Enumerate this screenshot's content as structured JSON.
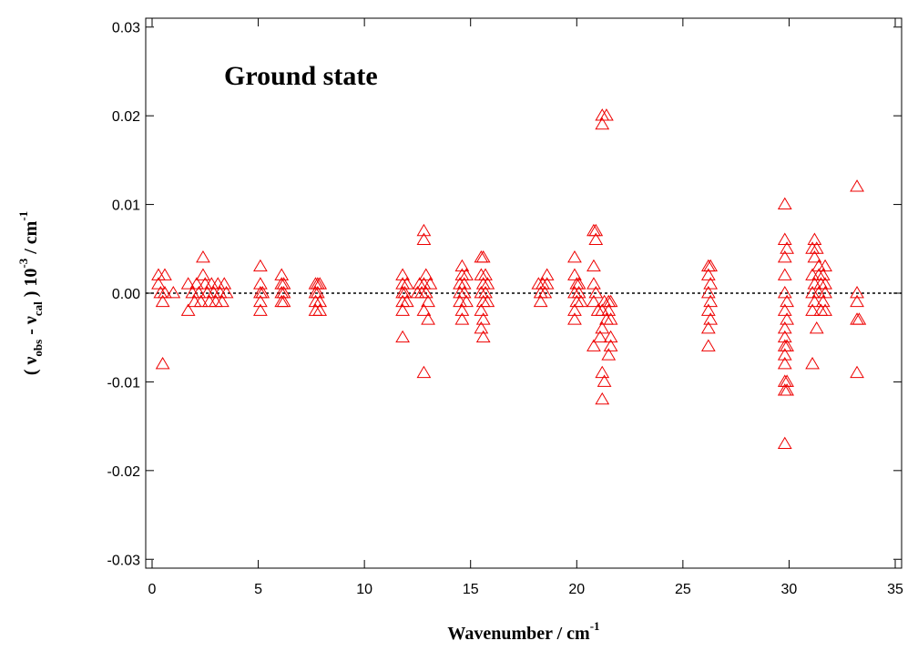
{
  "chart_data": {
    "type": "scatter",
    "title": "",
    "annotation": "Ground state",
    "xlabel": {
      "main": "Wavenumber / cm",
      "sup": "-1"
    },
    "ylabel": {
      "open": "( ν",
      "sub1": "obs",
      "mid": " - ν",
      "sub2": "cal",
      "close": " ) 10",
      "sup1": "-3",
      "unit": " / cm",
      "sup2": "-1"
    },
    "xlim": [
      -0.3,
      35.3
    ],
    "ylim": [
      -0.031,
      0.031
    ],
    "xticks": [
      0,
      5,
      10,
      15,
      20,
      25,
      30,
      35
    ],
    "xtick_labels": [
      "0",
      "5",
      "10",
      "15",
      "20",
      "25",
      "30",
      "35"
    ],
    "yticks": [
      -0.03,
      -0.02,
      -0.01,
      0.0,
      0.01,
      0.02,
      0.03
    ],
    "ytick_labels": [
      "-0.03",
      "-0.02",
      "-0.01",
      "0.00",
      "0.01",
      "0.02",
      "0.03"
    ],
    "reference_line": {
      "y": 0,
      "style": "dotted"
    },
    "grid": false,
    "marker": "open-triangle",
    "marker_color": "#ee0000",
    "points": [
      {
        "x": 0.3,
        "y": 0.002
      },
      {
        "x": 0.3,
        "y": 0.001
      },
      {
        "x": 0.4,
        "y": 0.0
      },
      {
        "x": 0.5,
        "y": -0.001
      },
      {
        "x": 0.5,
        "y": -0.008
      },
      {
        "x": 0.6,
        "y": 0.002
      },
      {
        "x": 0.6,
        "y": 0.0
      },
      {
        "x": 1.0,
        "y": 0.0
      },
      {
        "x": 1.7,
        "y": 0.001
      },
      {
        "x": 1.7,
        "y": -0.002
      },
      {
        "x": 1.9,
        "y": 0.0
      },
      {
        "x": 2.0,
        "y": -0.001
      },
      {
        "x": 2.1,
        "y": 0.001
      },
      {
        "x": 2.2,
        "y": 0.0
      },
      {
        "x": 2.3,
        "y": -0.001
      },
      {
        "x": 2.4,
        "y": 0.002
      },
      {
        "x": 2.4,
        "y": 0.004
      },
      {
        "x": 2.5,
        "y": 0.001
      },
      {
        "x": 2.6,
        "y": 0.0
      },
      {
        "x": 2.7,
        "y": -0.001
      },
      {
        "x": 2.8,
        "y": 0.001
      },
      {
        "x": 2.9,
        "y": 0.0
      },
      {
        "x": 3.0,
        "y": -0.001
      },
      {
        "x": 3.1,
        "y": 0.001
      },
      {
        "x": 3.2,
        "y": 0.0
      },
      {
        "x": 3.3,
        "y": -0.001
      },
      {
        "x": 3.4,
        "y": 0.001
      },
      {
        "x": 3.5,
        "y": 0.0
      },
      {
        "x": 5.1,
        "y": 0.003
      },
      {
        "x": 5.1,
        "y": 0.001
      },
      {
        "x": 5.1,
        "y": 0.0
      },
      {
        "x": 5.1,
        "y": -0.001
      },
      {
        "x": 5.1,
        "y": -0.002
      },
      {
        "x": 5.2,
        "y": 0.0
      },
      {
        "x": 6.1,
        "y": 0.002
      },
      {
        "x": 6.1,
        "y": 0.001
      },
      {
        "x": 6.1,
        "y": 0.0
      },
      {
        "x": 6.1,
        "y": -0.001
      },
      {
        "x": 6.2,
        "y": 0.001
      },
      {
        "x": 6.2,
        "y": 0.0
      },
      {
        "x": 6.2,
        "y": -0.001
      },
      {
        "x": 7.7,
        "y": 0.001
      },
      {
        "x": 7.7,
        "y": 0.0
      },
      {
        "x": 7.7,
        "y": -0.001
      },
      {
        "x": 7.7,
        "y": -0.002
      },
      {
        "x": 7.8,
        "y": 0.001
      },
      {
        "x": 7.8,
        "y": 0.0
      },
      {
        "x": 7.9,
        "y": -0.001
      },
      {
        "x": 7.9,
        "y": -0.002
      },
      {
        "x": 7.9,
        "y": 0.001
      },
      {
        "x": 11.8,
        "y": 0.002
      },
      {
        "x": 11.8,
        "y": 0.001
      },
      {
        "x": 11.8,
        "y": 0.0
      },
      {
        "x": 11.8,
        "y": -0.001
      },
      {
        "x": 11.8,
        "y": -0.002
      },
      {
        "x": 11.8,
        "y": -0.005
      },
      {
        "x": 11.9,
        "y": 0.0
      },
      {
        "x": 12.0,
        "y": 0.001
      },
      {
        "x": 12.0,
        "y": -0.001
      },
      {
        "x": 12.5,
        "y": 0.0
      },
      {
        "x": 12.6,
        "y": 0.001
      },
      {
        "x": 12.7,
        "y": 0.0
      },
      {
        "x": 12.8,
        "y": 0.007
      },
      {
        "x": 12.8,
        "y": 0.006
      },
      {
        "x": 12.8,
        "y": 0.001
      },
      {
        "x": 12.8,
        "y": -0.002
      },
      {
        "x": 12.8,
        "y": -0.009
      },
      {
        "x": 12.9,
        "y": 0.002
      },
      {
        "x": 12.9,
        "y": 0.0
      },
      {
        "x": 13.0,
        "y": -0.001
      },
      {
        "x": 13.0,
        "y": -0.003
      },
      {
        "x": 13.1,
        "y": 0.001
      },
      {
        "x": 14.5,
        "y": 0.001
      },
      {
        "x": 14.5,
        "y": 0.0
      },
      {
        "x": 14.5,
        "y": -0.001
      },
      {
        "x": 14.6,
        "y": 0.003
      },
      {
        "x": 14.6,
        "y": 0.002
      },
      {
        "x": 14.6,
        "y": -0.002
      },
      {
        "x": 14.6,
        "y": -0.003
      },
      {
        "x": 14.7,
        "y": 0.001
      },
      {
        "x": 14.7,
        "y": 0.0
      },
      {
        "x": 14.8,
        "y": -0.001
      },
      {
        "x": 14.8,
        "y": 0.002
      },
      {
        "x": 15.5,
        "y": 0.004
      },
      {
        "x": 15.5,
        "y": 0.002
      },
      {
        "x": 15.5,
        "y": 0.0
      },
      {
        "x": 15.5,
        "y": -0.002
      },
      {
        "x": 15.5,
        "y": -0.004
      },
      {
        "x": 15.6,
        "y": 0.004
      },
      {
        "x": 15.6,
        "y": 0.001
      },
      {
        "x": 15.6,
        "y": -0.001
      },
      {
        "x": 15.6,
        "y": -0.003
      },
      {
        "x": 15.6,
        "y": -0.005
      },
      {
        "x": 15.7,
        "y": 0.002
      },
      {
        "x": 15.7,
        "y": 0.0
      },
      {
        "x": 15.8,
        "y": -0.001
      },
      {
        "x": 15.8,
        "y": 0.001
      },
      {
        "x": 18.2,
        "y": 0.001
      },
      {
        "x": 18.3,
        "y": 0.0
      },
      {
        "x": 18.3,
        "y": -0.001
      },
      {
        "x": 18.4,
        "y": 0.001
      },
      {
        "x": 18.5,
        "y": 0.0
      },
      {
        "x": 18.6,
        "y": 0.002
      },
      {
        "x": 18.6,
        "y": 0.001
      },
      {
        "x": 19.9,
        "y": 0.004
      },
      {
        "x": 19.9,
        "y": 0.002
      },
      {
        "x": 19.9,
        "y": 0.0
      },
      {
        "x": 19.9,
        "y": -0.002
      },
      {
        "x": 19.9,
        "y": -0.003
      },
      {
        "x": 20.0,
        "y": 0.001
      },
      {
        "x": 20.0,
        "y": -0.001
      },
      {
        "x": 20.1,
        "y": 0.0
      },
      {
        "x": 20.1,
        "y": 0.001
      },
      {
        "x": 20.2,
        "y": -0.001
      },
      {
        "x": 20.8,
        "y": 0.007
      },
      {
        "x": 20.8,
        "y": 0.003
      },
      {
        "x": 20.8,
        "y": 0.001
      },
      {
        "x": 20.8,
        "y": -0.001
      },
      {
        "x": 20.8,
        "y": -0.006
      },
      {
        "x": 20.9,
        "y": 0.007
      },
      {
        "x": 20.9,
        "y": 0.006
      },
      {
        "x": 20.9,
        "y": 0.0
      },
      {
        "x": 21.0,
        "y": -0.002
      },
      {
        "x": 21.1,
        "y": -0.005
      },
      {
        "x": 21.2,
        "y": 0.02
      },
      {
        "x": 21.2,
        "y": 0.019
      },
      {
        "x": 21.2,
        "y": -0.002
      },
      {
        "x": 21.2,
        "y": -0.004
      },
      {
        "x": 21.2,
        "y": -0.009
      },
      {
        "x": 21.2,
        "y": -0.012
      },
      {
        "x": 21.3,
        "y": -0.001
      },
      {
        "x": 21.3,
        "y": -0.01
      },
      {
        "x": 21.4,
        "y": 0.02
      },
      {
        "x": 21.4,
        "y": -0.003
      },
      {
        "x": 21.5,
        "y": -0.001
      },
      {
        "x": 21.5,
        "y": -0.002
      },
      {
        "x": 21.5,
        "y": -0.007
      },
      {
        "x": 21.6,
        "y": -0.001
      },
      {
        "x": 21.6,
        "y": -0.003
      },
      {
        "x": 21.6,
        "y": -0.005
      },
      {
        "x": 21.6,
        "y": -0.006
      },
      {
        "x": 26.2,
        "y": 0.003
      },
      {
        "x": 26.2,
        "y": 0.002
      },
      {
        "x": 26.2,
        "y": 0.0
      },
      {
        "x": 26.2,
        "y": -0.002
      },
      {
        "x": 26.2,
        "y": -0.004
      },
      {
        "x": 26.2,
        "y": -0.006
      },
      {
        "x": 26.3,
        "y": 0.003
      },
      {
        "x": 26.3,
        "y": 0.001
      },
      {
        "x": 26.3,
        "y": -0.001
      },
      {
        "x": 26.3,
        "y": -0.003
      },
      {
        "x": 29.8,
        "y": 0.01
      },
      {
        "x": 29.8,
        "y": 0.006
      },
      {
        "x": 29.8,
        "y": 0.004
      },
      {
        "x": 29.8,
        "y": 0.002
      },
      {
        "x": 29.8,
        "y": 0.0
      },
      {
        "x": 29.8,
        "y": -0.002
      },
      {
        "x": 29.8,
        "y": -0.004
      },
      {
        "x": 29.8,
        "y": -0.005
      },
      {
        "x": 29.8,
        "y": -0.006
      },
      {
        "x": 29.8,
        "y": -0.007
      },
      {
        "x": 29.8,
        "y": -0.008
      },
      {
        "x": 29.8,
        "y": -0.01
      },
      {
        "x": 29.8,
        "y": -0.011
      },
      {
        "x": 29.8,
        "y": -0.017
      },
      {
        "x": 29.9,
        "y": 0.005
      },
      {
        "x": 29.9,
        "y": -0.001
      },
      {
        "x": 29.9,
        "y": -0.003
      },
      {
        "x": 29.9,
        "y": -0.006
      },
      {
        "x": 29.9,
        "y": -0.01
      },
      {
        "x": 29.9,
        "y": -0.011
      },
      {
        "x": 31.1,
        "y": 0.005
      },
      {
        "x": 31.1,
        "y": 0.002
      },
      {
        "x": 31.1,
        "y": 0.0
      },
      {
        "x": 31.1,
        "y": -0.002
      },
      {
        "x": 31.1,
        "y": -0.008
      },
      {
        "x": 31.2,
        "y": 0.006
      },
      {
        "x": 31.2,
        "y": 0.004
      },
      {
        "x": 31.2,
        "y": 0.001
      },
      {
        "x": 31.2,
        "y": -0.001
      },
      {
        "x": 31.3,
        "y": 0.005
      },
      {
        "x": 31.3,
        "y": -0.004
      },
      {
        "x": 31.4,
        "y": 0.003
      },
      {
        "x": 31.4,
        "y": 0.002
      },
      {
        "x": 31.4,
        "y": 0.0
      },
      {
        "x": 31.5,
        "y": 0.001
      },
      {
        "x": 31.5,
        "y": -0.002
      },
      {
        "x": 31.6,
        "y": 0.002
      },
      {
        "x": 31.6,
        "y": -0.001
      },
      {
        "x": 31.7,
        "y": 0.003
      },
      {
        "x": 31.7,
        "y": 0.001
      },
      {
        "x": 31.7,
        "y": 0.0
      },
      {
        "x": 31.7,
        "y": -0.002
      },
      {
        "x": 33.2,
        "y": 0.012
      },
      {
        "x": 33.2,
        "y": 0.0
      },
      {
        "x": 33.2,
        "y": -0.001
      },
      {
        "x": 33.2,
        "y": -0.003
      },
      {
        "x": 33.2,
        "y": -0.009
      },
      {
        "x": 33.3,
        "y": -0.003
      }
    ]
  }
}
